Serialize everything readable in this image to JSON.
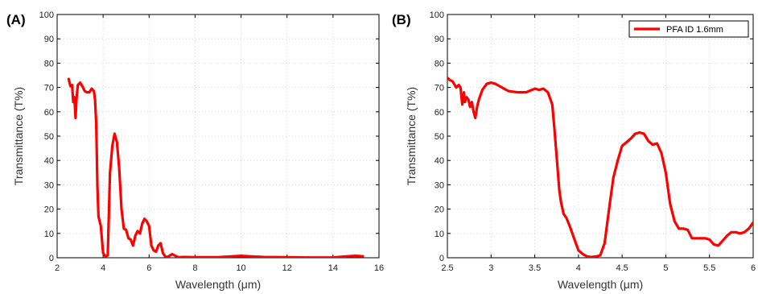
{
  "chart_data": [
    {
      "type": "line",
      "panel_label": "(A)",
      "xlabel": "Wavelength (μm)",
      "ylabel": "Transmittance (T%)",
      "xlim": [
        2,
        16
      ],
      "ylim": [
        0,
        100
      ],
      "xticks": [
        2,
        4,
        6,
        8,
        10,
        12,
        14,
        16
      ],
      "yticks": [
        0,
        10,
        20,
        30,
        40,
        50,
        60,
        70,
        80,
        90,
        100
      ],
      "grid": true,
      "color": "#ff0000",
      "series": [
        {
          "x": [
            2.5,
            2.58,
            2.65,
            2.7,
            2.75,
            2.8,
            2.84,
            2.9,
            3.0,
            3.1,
            3.2,
            3.3,
            3.4,
            3.5,
            3.6,
            3.65,
            3.7,
            3.75,
            3.8,
            3.9,
            4.0,
            4.1,
            4.2,
            4.3,
            4.4,
            4.5,
            4.6,
            4.7,
            4.8,
            4.9,
            5.0,
            5.1,
            5.2,
            5.3,
            5.4,
            5.5,
            5.6,
            5.7,
            5.8,
            5.9,
            6.0,
            6.1,
            6.2,
            6.3,
            6.4,
            6.5,
            6.6,
            6.7,
            6.8,
            7.0,
            7.2,
            7.3,
            7.5,
            8.0,
            9.0,
            10.0,
            10.5,
            11.0,
            12.0,
            13.0,
            14.0,
            14.5,
            15.0,
            15.3
          ],
          "y": [
            73.5,
            70.5,
            71,
            64,
            66,
            57.5,
            65,
            71,
            72,
            70.5,
            68.5,
            68,
            68,
            69.5,
            68.5,
            65,
            55,
            30,
            17,
            13,
            2,
            0.5,
            1,
            35,
            46,
            51,
            47.5,
            37,
            20,
            12,
            11.5,
            8,
            7.5,
            5,
            9,
            11,
            10,
            14,
            16,
            15,
            13,
            5,
            3,
            2.5,
            5,
            6,
            2,
            0.5,
            0.3,
            1.5,
            0.5,
            0.2,
            0.3,
            0.2,
            0.2,
            0.8,
            0.5,
            0.3,
            0.2,
            0.1,
            0.1,
            0.5,
            0.8,
            0.6
          ]
        }
      ]
    },
    {
      "type": "line",
      "panel_label": "(B)",
      "xlabel": "Wavelength (μm)",
      "ylabel": "Transmittance (T%)",
      "xlim": [
        2.5,
        6
      ],
      "ylim": [
        0,
        100
      ],
      "xticks": [
        2.5,
        3,
        3.5,
        4,
        4.5,
        5,
        5.5,
        6
      ],
      "yticks": [
        0,
        10,
        20,
        30,
        40,
        50,
        60,
        70,
        80,
        90,
        100
      ],
      "grid": true,
      "legend": "top-right",
      "color": "#ff0000",
      "series": [
        {
          "name": "PFA ID 1.6mm",
          "x": [
            2.5,
            2.53,
            2.56,
            2.6,
            2.63,
            2.65,
            2.67,
            2.69,
            2.7,
            2.72,
            2.74,
            2.76,
            2.78,
            2.8,
            2.82,
            2.84,
            2.86,
            2.9,
            2.95,
            3.0,
            3.05,
            3.1,
            3.2,
            3.3,
            3.4,
            3.5,
            3.55,
            3.6,
            3.65,
            3.7,
            3.72,
            3.75,
            3.78,
            3.8,
            3.83,
            3.86,
            3.9,
            3.95,
            4.0,
            4.05,
            4.1,
            4.15,
            4.2,
            4.25,
            4.3,
            4.35,
            4.4,
            4.45,
            4.5,
            4.55,
            4.6,
            4.65,
            4.7,
            4.75,
            4.8,
            4.85,
            4.9,
            4.95,
            5.0,
            5.05,
            5.1,
            5.15,
            5.2,
            5.25,
            5.3,
            5.35,
            5.4,
            5.45,
            5.5,
            5.55,
            5.6,
            5.65,
            5.7,
            5.75,
            5.8,
            5.85,
            5.9,
            5.95,
            6.0
          ],
          "y": [
            74,
            73,
            72.5,
            70,
            71,
            70,
            63,
            68,
            64,
            66,
            65,
            62,
            64,
            60,
            57.5,
            62,
            65,
            69,
            71.5,
            72,
            71.5,
            70.5,
            68.5,
            68,
            68,
            69.5,
            69,
            69.5,
            68,
            63,
            55,
            42,
            28,
            23,
            18,
            16.5,
            13,
            8,
            3,
            1.5,
            0.5,
            0.3,
            0.5,
            1,
            6,
            20,
            33,
            40,
            46,
            47.5,
            49,
            51,
            51.5,
            51,
            48,
            46.5,
            47,
            43,
            35,
            22,
            15,
            12,
            12,
            11.5,
            8,
            8,
            8,
            8,
            7.5,
            5.5,
            5,
            7,
            9,
            10.5,
            10.5,
            10,
            10.5,
            12,
            14.5
          ]
        }
      ]
    }
  ]
}
